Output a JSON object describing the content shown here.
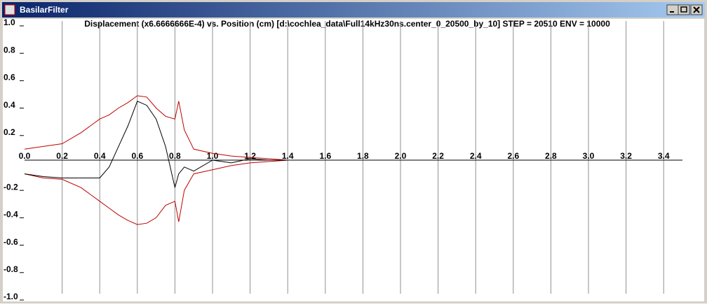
{
  "window": {
    "title": "BasilarFilter"
  },
  "chart_data": {
    "type": "line",
    "title": "Displacement (x6.6666666E-4) vs. Position (cm) [d:\\cochlea_data\\Full14kHz30ns.center_0_20500_by_10] STEP = 20510 ENV = 10000",
    "x": [
      0,
      0.1,
      0.2,
      0.3,
      0.4,
      0.45,
      0.5,
      0.55,
      0.6,
      0.65,
      0.7,
      0.75,
      0.8,
      0.82,
      0.85,
      0.9,
      1.0,
      1.1,
      1.2,
      1.3,
      1.4
    ],
    "series": [
      {
        "color": "#c00000",
        "values": [
          0.08,
          0.1,
          0.12,
          0.2,
          0.3,
          0.33,
          0.38,
          0.42,
          0.47,
          0.46,
          0.38,
          0.32,
          0.3,
          0.43,
          0.22,
          0.08,
          0.05,
          0.03,
          0.02,
          0.01,
          0
        ]
      },
      {
        "color": "#c00000",
        "values": [
          -0.1,
          -0.13,
          -0.14,
          -0.2,
          -0.3,
          -0.35,
          -0.4,
          -0.44,
          -0.47,
          -0.46,
          -0.42,
          -0.33,
          -0.3,
          -0.45,
          -0.22,
          -0.1,
          -0.07,
          -0.04,
          -0.02,
          -0.01,
          0
        ]
      },
      {
        "color": "#000000",
        "values": [
          -0.1,
          -0.12,
          -0.13,
          -0.13,
          -0.13,
          -0.05,
          0.1,
          0.25,
          0.43,
          0.4,
          0.3,
          0.1,
          -0.2,
          -0.1,
          -0.05,
          -0.08,
          0,
          -0.02,
          0.01,
          0,
          0
        ]
      }
    ],
    "xlim": [
      0,
      3.5
    ],
    "xticks": [
      {
        "value": 0,
        "label": "0.0"
      },
      0.2,
      0.4,
      0.6,
      0.8,
      {
        "value": 1,
        "label": "1.0"
      },
      1.2,
      1.4,
      1.6,
      1.8,
      {
        "value": 2,
        "label": "2.0"
      },
      2.2,
      2.4,
      2.6,
      2.8,
      {
        "value": 3,
        "label": "3.0"
      },
      3.2,
      3.4
    ],
    "ylim": [
      -1,
      1
    ],
    "yticks": [
      {
        "value": 1,
        "label": "1.0"
      },
      0.8,
      0.6,
      0.4,
      0.2,
      -0.2,
      -0.4,
      -0.6,
      -0.8,
      {
        "value": -1,
        "label": "-1.0"
      }
    ],
    "grid": true
  }
}
